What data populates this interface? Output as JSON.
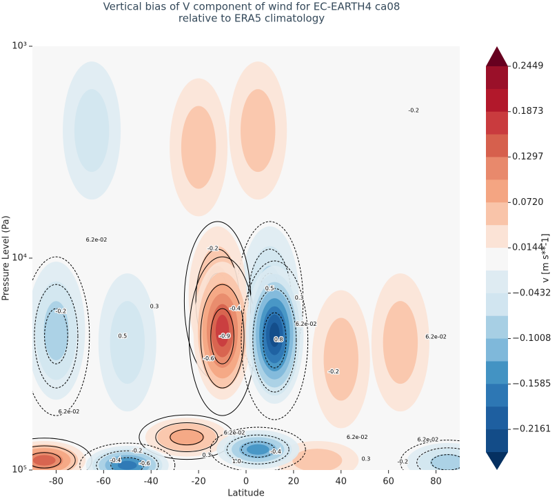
{
  "chart_data": {
    "type": "contour",
    "title": [
      "Vertical bias of V component of wind for EC-EARTH4 ca08",
      "relative to ERA5 climatology"
    ],
    "x_label": "Latitude",
    "y_label": "Pressure Level (Pa)",
    "xlim": [
      -90,
      90
    ],
    "xticks": [
      -80,
      -60,
      -40,
      -20,
      0,
      20,
      40,
      60,
      80
    ],
    "yscale": "log",
    "y_inverted": true,
    "ylim": [
      1000,
      100000
    ],
    "yticks": [
      {
        "value": 1000,
        "label": "10³"
      },
      {
        "value": 10000,
        "label": "10⁴"
      },
      {
        "value": 100000,
        "label": "10⁵"
      }
    ],
    "background": "#f7f7f7",
    "anomalies": {
      "lat": [
        -10,
        -12,
        -20,
        5,
        12,
        10,
        -65,
        -80,
        -50,
        65,
        40,
        -25,
        5,
        -50,
        85,
        30,
        -85
      ],
      "pressure": [
        22000,
        15000,
        3000,
        2500,
        23000,
        15000,
        2500,
        22000,
        25000,
        25000,
        30000,
        70000,
        80000,
        95000,
        92000,
        90000,
        90000
      ],
      "values": [
        0.15,
        0.07,
        0.03,
        0.03,
        -0.19,
        -0.06,
        -0.03,
        -0.06,
        -0.04,
        0.04,
        0.03,
        0.05,
        -0.11,
        -0.14,
        -0.06,
        0.04,
        0.12
      ]
    },
    "contour_labels": {
      "labels": [
        "-0.2",
        "0.5",
        "0.3",
        "-0.9",
        "-0.4",
        "-0.6",
        "-0.2",
        "0.5",
        "0.8",
        "0.3",
        "6.2e-02",
        "-0.2",
        "6.2e-02",
        "6.2e-02",
        "-0.2",
        "6.2e-02",
        "-0.2",
        "6.2e-02",
        "-0.4",
        "6.2e-02",
        "0.3",
        "-0.2",
        "6.2e-02",
        "0.3",
        "1.0",
        "-0.4",
        "-0.6"
      ],
      "lat": [
        -78,
        -52,
        -38.6,
        -9,
        -4.6,
        -15.7,
        -14,
        9.9,
        13.7,
        22.4,
        25.3,
        36.9,
        80,
        -63,
        70.6,
        -74.6,
        -46,
        -4.9,
        12.5,
        46.8,
        50.5,
        66,
        76.6,
        -16.6,
        -4,
        -55,
        -42.7
      ],
      "pressure": [
        17800,
        23300,
        16900,
        23300,
        17300,
        29800,
        9000,
        13900,
        24200,
        15400,
        20500,
        34400,
        23500,
        8200,
        2010,
        53000,
        81000,
        66700,
        82000,
        70000,
        88700,
        91500,
        72000,
        85000,
        91000,
        90000,
        93000
      ]
    },
    "colorbar": {
      "label": "v [m s**-1]",
      "clim": [
        -0.2449,
        0.2449
      ],
      "colors": [
        "#9a1029",
        "#b2182b",
        "#c93b3e",
        "#d6604d",
        "#e8896c",
        "#f4a582",
        "#f9c4a9",
        "#fbe3d6",
        "#f7f7f7",
        "#deebf2",
        "#d1e5f0",
        "#a7cfe4",
        "#7fb8da",
        "#4393c3",
        "#2d77b4",
        "#1e5fa0",
        "#134c88"
      ],
      "extend_colors": [
        "#67001f",
        "#053061"
      ],
      "ticks": [
        0.2449,
        0.1873,
        0.1297,
        {
          "value": 0.072,
          "label": "0.0720"
        },
        0.0144,
        {
          "value": -0.0432,
          "label": "−0.0432"
        },
        {
          "value": -0.1008,
          "label": "−0.1008"
        },
        {
          "value": -0.1585,
          "label": "−0.1585"
        },
        {
          "value": -0.2161,
          "label": "−0.2161"
        }
      ]
    }
  }
}
